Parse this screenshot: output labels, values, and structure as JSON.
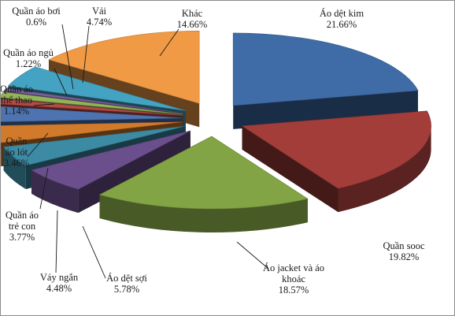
{
  "chart_data": {
    "type": "pie",
    "style": "3d-exploded",
    "title": "",
    "legend": "none",
    "unit": "%",
    "slices": [
      {
        "name": "Áo dệt kim",
        "value": 21.66,
        "display": "21.66%",
        "color": "#3f6ca6"
      },
      {
        "name": "Quần sooc",
        "value": 19.82,
        "display": "19.82%",
        "color": "#a33d3a"
      },
      {
        "name": "Áo jacket và áo khoác",
        "value": 18.57,
        "display": "18.57%",
        "color": "#83a444"
      },
      {
        "name": "Áo dệt sợi",
        "value": 5.78,
        "display": "5.78%",
        "color": "#6a4f8c"
      },
      {
        "name": "Váy ngắn",
        "value": 4.48,
        "display": "4.48%",
        "color": "#3c8aa3"
      },
      {
        "name": "Quần áo trẻ con",
        "value": 3.77,
        "display": "3.77%",
        "color": "#d17a2c"
      },
      {
        "name": "Quần áo lót",
        "value": 3.46,
        "display": "3.46%",
        "color": "#4d73b0"
      },
      {
        "name": "Quần áo thể thao",
        "value": 1.14,
        "display": "1.14%",
        "color": "#b24a45"
      },
      {
        "name": "Quần áo ngủ",
        "value": 1.22,
        "display": "1.22%",
        "color": "#93b35a"
      },
      {
        "name": "Quần áo bơi",
        "value": 0.6,
        "display": "0.6%",
        "color": "#7a5f9e"
      },
      {
        "name": "Vải",
        "value": 4.74,
        "display": "4.74%",
        "color": "#44a3c2"
      },
      {
        "name": "Khác",
        "value": 14.66,
        "display": "14.66%",
        "color": "#f19a45"
      }
    ]
  }
}
